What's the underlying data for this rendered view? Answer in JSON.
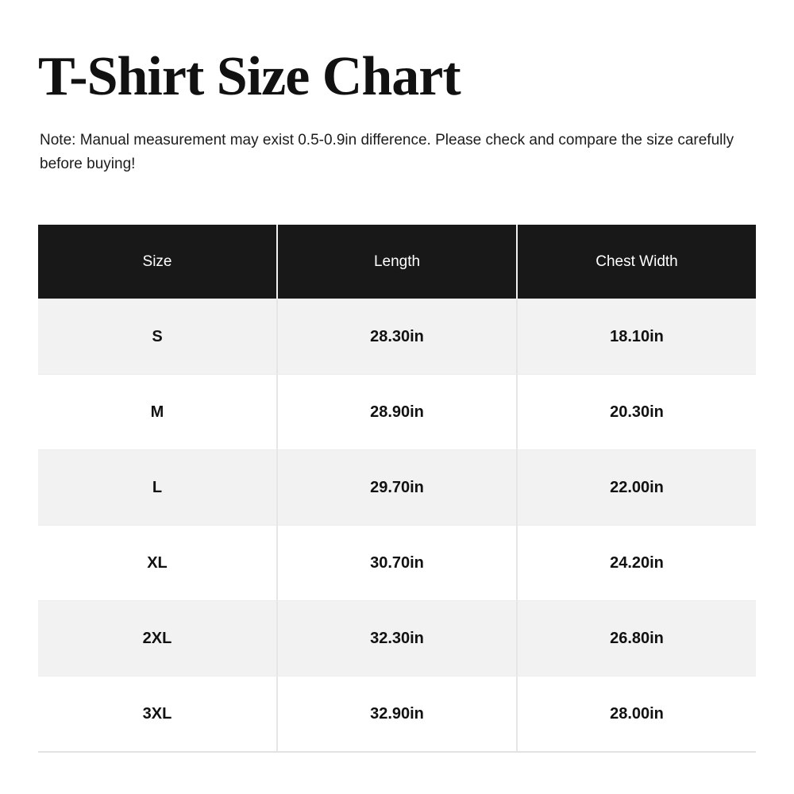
{
  "page": {
    "title": "T-Shirt Size Chart",
    "note": "Note: Manual measurement may exist 0.5-0.9in difference. Please check and compare the size carefully before buying!"
  },
  "colors": {
    "header_bg": "#181818",
    "header_text": "#ffffff",
    "row_bg": "#ffffff",
    "row_alt_bg": "#f2f2f2",
    "body_text": "#111111",
    "divider": "#e6e6e6"
  },
  "chart_data": {
    "type": "table",
    "title": "T-Shirt Size Chart",
    "columns": [
      "Size",
      "Length",
      "Chest Width"
    ],
    "rows": [
      [
        "S",
        "28.30in",
        "18.10in"
      ],
      [
        "M",
        "28.90in",
        "20.30in"
      ],
      [
        "L",
        "29.70in",
        "22.00in"
      ],
      [
        "XL",
        "30.70in",
        "24.20in"
      ],
      [
        "2XL",
        "32.30in",
        "26.80in"
      ],
      [
        "3XL",
        "32.90in",
        "28.00in"
      ]
    ]
  }
}
